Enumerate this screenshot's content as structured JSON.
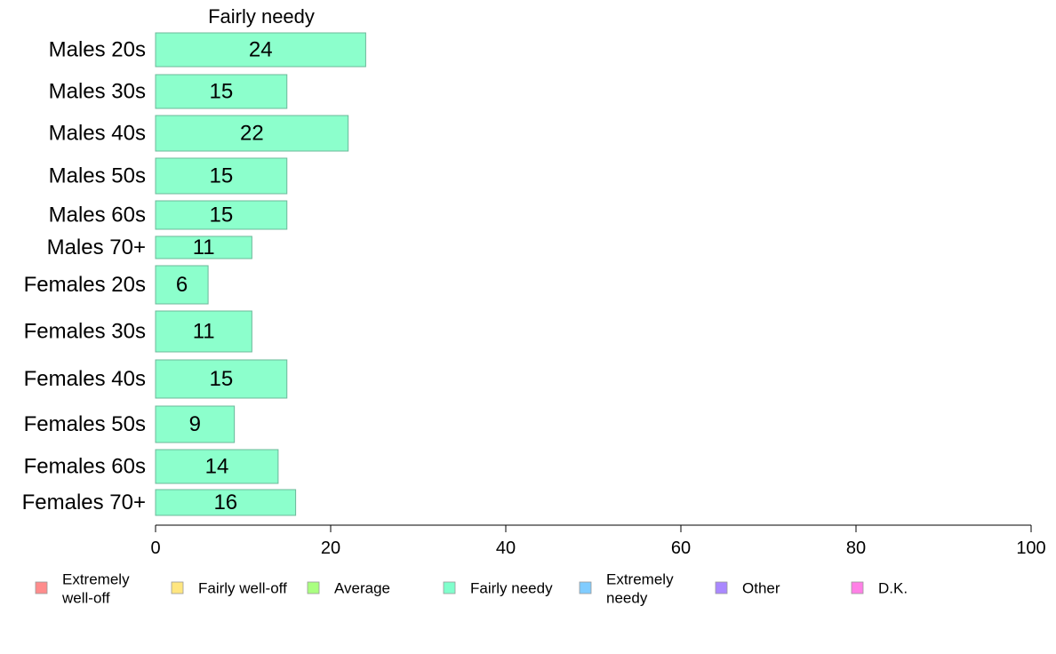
{
  "chart_data": {
    "type": "bar",
    "orientation": "horizontal",
    "title": "Fairly needy",
    "categories": [
      "Males 20s",
      "Males 30s",
      "Males 40s",
      "Males 50s",
      "Males 60s",
      "Males 70+",
      "Females 20s",
      "Females 30s",
      "Females 40s",
      "Females 50s",
      "Females 60s",
      "Females 70+"
    ],
    "values": [
      24,
      15,
      22,
      15,
      15,
      11,
      6,
      11,
      15,
      9,
      14,
      16
    ],
    "value_labels": [
      "24",
      "15",
      "22",
      "15",
      "15",
      "11",
      "6",
      "11",
      "15",
      "9",
      "14",
      "16"
    ],
    "bar_color": "#8cffcc",
    "xlim": [
      0,
      100
    ],
    "xticks": [
      0,
      20,
      40,
      60,
      80,
      100
    ],
    "xtick_labels": [
      "0",
      "20",
      "40",
      "60",
      "80",
      "100"
    ],
    "grid": false,
    "legend_position": "bottom",
    "legend": [
      {
        "label": [
          "Extremely",
          "well-off"
        ],
        "color": "#ff8c8c"
      },
      {
        "label": [
          "Fairly well-off"
        ],
        "color": "#ffe680"
      },
      {
        "label": [
          "Average"
        ],
        "color": "#aaff80"
      },
      {
        "label": [
          "Fairly needy"
        ],
        "color": "#80ffcc"
      },
      {
        "label": [
          "Extremely",
          "needy"
        ],
        "color": "#80ccff"
      },
      {
        "label": [
          "Other"
        ],
        "color": "#aa88ff"
      },
      {
        "label": [
          "D.K."
        ],
        "color": "#ff80e6"
      }
    ]
  }
}
